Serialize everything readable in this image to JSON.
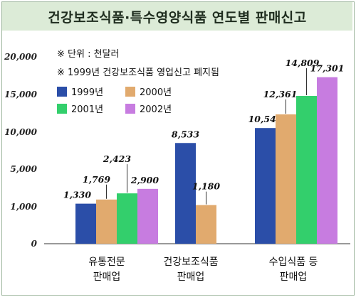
{
  "title": "건강보조식품·특수영양식품 연도별 판매신고",
  "chart_data": {
    "type": "bar",
    "title": "건강보조식품·특수영양식품 연도별 판매신고",
    "notes": [
      "※ 단위 : 천달러",
      "※ 1999년 건강보조식품 영업신고 폐지됨"
    ],
    "yticks": [
      "20,000",
      "15,000",
      "10,000",
      "5,000",
      "1,000",
      "0"
    ],
    "categories": [
      [
        "유통전문",
        "판매업"
      ],
      [
        "건강보조식품",
        "판매업"
      ],
      [
        "수입식품 등",
        "판매업"
      ]
    ],
    "series": [
      {
        "name": "1999년",
        "color": "#2b4ea8",
        "values": [
          1330,
          8533,
          10548
        ],
        "labels": [
          "1,330",
          "8,533",
          "10,548"
        ]
      },
      {
        "name": "2000년",
        "color": "#e1aa6e",
        "values": [
          1769,
          1180,
          12361
        ],
        "labels": [
          "1,769",
          "1,180",
          "12,361"
        ]
      },
      {
        "name": "2001년",
        "color": "#33cf6c",
        "values": [
          2423,
          null,
          14809
        ],
        "labels": [
          "2,423",
          null,
          "14,809"
        ]
      },
      {
        "name": "2002년",
        "color": "#c77ce0",
        "values": [
          2900,
          null,
          17301
        ],
        "labels": [
          "2,900",
          null,
          "17,301"
        ]
      }
    ],
    "legend": "top-left",
    "grid": false
  }
}
